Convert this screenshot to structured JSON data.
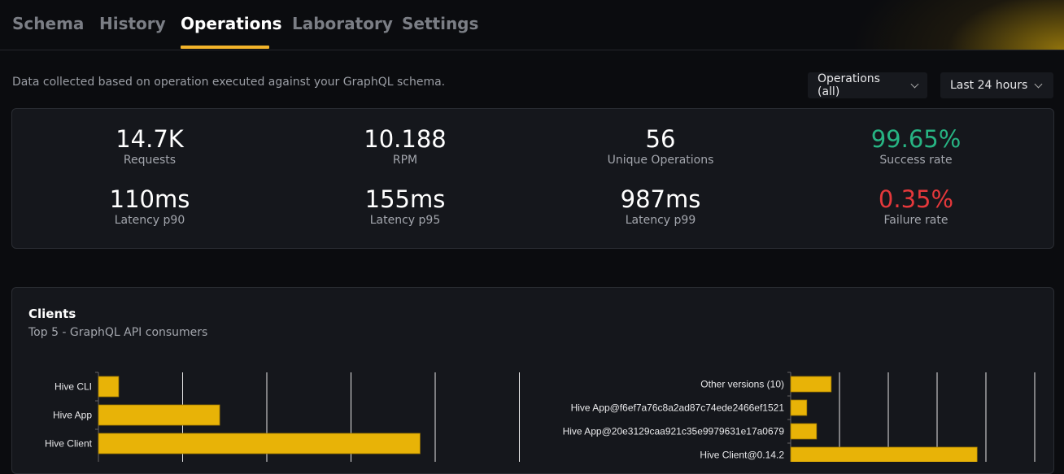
{
  "tabs": [
    {
      "label": "Schema"
    },
    {
      "label": "History"
    },
    {
      "label": "Operations",
      "active": true
    },
    {
      "label": "Laboratory"
    },
    {
      "label": "Settings"
    }
  ],
  "description": "Data collected based on operation executed against your GraphQL schema.",
  "filters": {
    "operations": "Operations (all)",
    "period": "Last 24 hours"
  },
  "stats": [
    {
      "value": "14.7K",
      "label": "Requests"
    },
    {
      "value": "10.188",
      "label": "RPM"
    },
    {
      "value": "56",
      "label": "Unique Operations"
    },
    {
      "value": "99.65%",
      "label": "Success rate",
      "color": "#27b483"
    },
    {
      "value": "110ms",
      "label": "Latency p90"
    },
    {
      "value": "155ms",
      "label": "Latency p95"
    },
    {
      "value": "987ms",
      "label": "Latency p99"
    },
    {
      "value": "0.35%",
      "label": "Failure rate",
      "color": "#e5383b"
    }
  ],
  "clients": {
    "title": "Clients",
    "subtitle": "Top 5 - GraphQL API consumers"
  },
  "chart_data": [
    {
      "type": "bar",
      "orientation": "horizontal",
      "categories": [
        "Hive CLI",
        "Hive App",
        "Hive Client"
      ],
      "values": [
        0.24,
        1.44,
        3.82
      ],
      "xlim": [
        0,
        5
      ],
      "grid": true,
      "color": "#e8b307"
    },
    {
      "type": "bar",
      "orientation": "horizontal",
      "categories": [
        "Other versions (10)",
        "Hive App@f6ef7a76c8a2ad87c74ede2466ef1521",
        "Hive App@20e3129caa921c35e9979631e17a0679",
        "Hive Client@0.14.2"
      ],
      "values": [
        0.83,
        0.33,
        0.53,
        3.82
      ],
      "xlim": [
        0,
        5
      ],
      "grid": true,
      "color": "#e8b307"
    }
  ]
}
